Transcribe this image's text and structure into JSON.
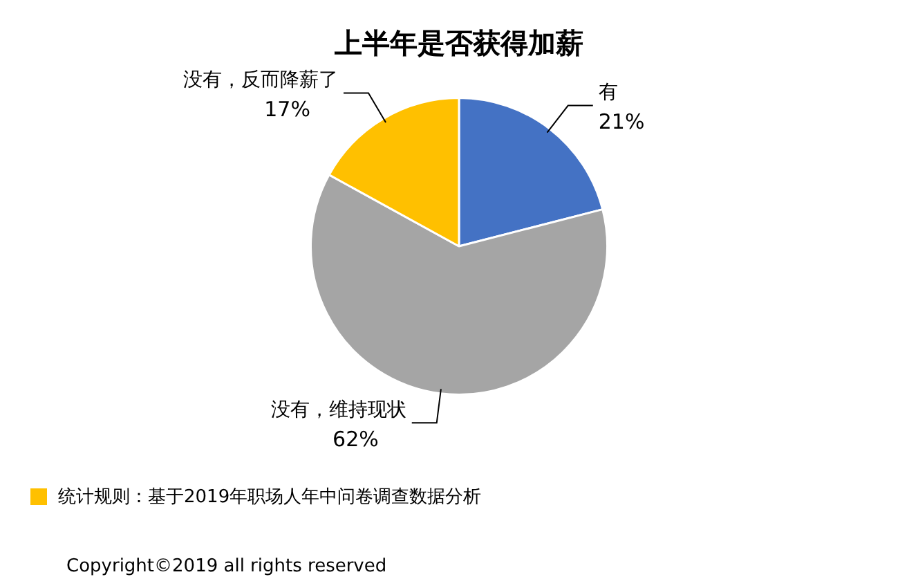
{
  "chart_data": {
    "type": "pie",
    "title": "上半年是否获得加薪",
    "categories": [
      "有",
      "没有，维持现状",
      "没有，反而降薪了"
    ],
    "values": [
      21,
      62,
      17
    ],
    "colors": [
      "#4472c4",
      "#a5a5a5",
      "#ffc000"
    ],
    "value_labels": [
      "21%",
      "62%",
      "17%"
    ],
    "legend": false,
    "annotations": [
      "统计规则：基于2019年职场人年中问卷调查数据分析",
      "Copyright©2019 all rights reserved"
    ]
  }
}
